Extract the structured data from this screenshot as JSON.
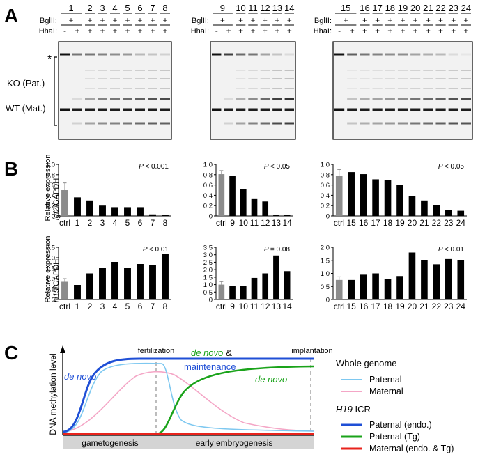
{
  "panels": {
    "A": "A",
    "B": "B",
    "C": "C"
  },
  "gel": {
    "bglII_label": "BglII:",
    "hhaI_label": "HhaI:",
    "asterisk": "*",
    "ko_label": "KO (Pat.)",
    "wt_label": "WT (Mat.)",
    "blocks": [
      {
        "lanes": [
          "1",
          "2",
          "3",
          "4",
          "5",
          "6",
          "7",
          "8"
        ],
        "bglII": [
          "+",
          "+",
          "+",
          "+",
          "+",
          "+",
          "+",
          "+"
        ],
        "hhaI_first": [
          "-",
          "+"
        ],
        "hhaI_rest": [
          "+",
          "+",
          "+",
          "+",
          "+",
          "+",
          "+"
        ],
        "top_band": [
          1.0,
          0.55,
          0.55,
          0.5,
          0.45,
          0.4,
          0.25,
          0.2,
          0.15
        ],
        "ko_band": [
          0.0,
          0.1,
          0.35,
          0.5,
          0.55,
          0.6,
          0.65,
          0.7,
          0.75
        ],
        "wt_band": [
          1.0,
          0.95,
          0.95,
          0.95,
          0.95,
          0.95,
          0.95,
          0.95,
          0.95
        ],
        "low_band": [
          0.0,
          0.15,
          0.35,
          0.45,
          0.5,
          0.55,
          0.6,
          0.65,
          0.65
        ]
      },
      {
        "lanes": [
          "9",
          "10",
          "11",
          "12",
          "13",
          "14"
        ],
        "bglII": [
          "+",
          "+",
          "+",
          "+",
          "+",
          "+"
        ],
        "hhaI_first": [
          "-",
          "+"
        ],
        "hhaI_rest": [
          "+",
          "+",
          "+",
          "+",
          "+"
        ],
        "top_band": [
          1.0,
          0.8,
          0.6,
          0.55,
          0.35,
          0.2,
          0.1
        ],
        "ko_band": [
          0.0,
          0.1,
          0.3,
          0.45,
          0.6,
          0.8,
          0.85
        ],
        "wt_band": [
          1.0,
          0.95,
          0.95,
          0.95,
          0.95,
          0.95,
          0.95
        ],
        "low_band": [
          0.0,
          0.15,
          0.35,
          0.5,
          0.6,
          0.75,
          0.8
        ]
      },
      {
        "lanes": [
          "15",
          "16",
          "17",
          "18",
          "19",
          "20",
          "21",
          "22",
          "23",
          "24"
        ],
        "bglII": [
          "+",
          "+",
          "+",
          "+",
          "+",
          "+",
          "+",
          "+",
          "+",
          "+"
        ],
        "hhaI_first": [
          "-",
          "+"
        ],
        "hhaI_rest": [
          "+",
          "+",
          "+",
          "+",
          "+",
          "+",
          "+",
          "+",
          "+"
        ],
        "top_band": [
          1.0,
          0.65,
          0.55,
          0.5,
          0.45,
          0.45,
          0.35,
          0.3,
          0.25,
          0.1,
          0.05
        ],
        "ko_band": [
          0.0,
          0.2,
          0.3,
          0.35,
          0.4,
          0.45,
          0.55,
          0.6,
          0.65,
          0.7,
          0.75
        ],
        "wt_band": [
          1.0,
          0.95,
          0.95,
          0.95,
          0.95,
          0.95,
          0.95,
          0.95,
          0.95,
          0.95,
          0.95
        ],
        "low_band": [
          0.0,
          0.2,
          0.3,
          0.35,
          0.4,
          0.45,
          0.55,
          0.6,
          0.65,
          0.7,
          0.7
        ]
      }
    ]
  },
  "ylabels": {
    "igf2_pre": "Relative expression",
    "igf2_gene": "Igf2",
    "igf2_post": "/GAPDH",
    "h19_pre": "Relative expression",
    "h19_gene": "H19",
    "h19_post": "/GAPDH"
  },
  "pvalue_prefix": "P",
  "chart_data": [
    {
      "type": "bar",
      "gene": "Igf2",
      "categories": [
        "ctrl",
        "1",
        "2",
        "3",
        "4",
        "5",
        "6",
        "7",
        "8"
      ],
      "values": [
        0.5,
        0.36,
        0.3,
        0.2,
        0.17,
        0.17,
        0.17,
        0.03,
        0.02
      ],
      "error": [
        0.14,
        0,
        0,
        0,
        0,
        0,
        0,
        0,
        0
      ],
      "ylim": [
        0,
        1.0
      ],
      "yticks": [
        "0",
        "0.2",
        "0.4",
        "0.6",
        "0.8",
        "1.0"
      ],
      "pvalue_text": "< 0.001"
    },
    {
      "type": "bar",
      "gene": "Igf2",
      "categories": [
        "ctrl",
        "9",
        "10",
        "11",
        "12",
        "13",
        "14"
      ],
      "values": [
        0.81,
        0.78,
        0.52,
        0.34,
        0.28,
        0.02,
        0.02
      ],
      "error": [
        0.07,
        0,
        0,
        0,
        0,
        0,
        0
      ],
      "ylim": [
        0,
        1.0
      ],
      "yticks": [
        "0",
        "0.2",
        "0.4",
        "0.6",
        "0.8",
        "1.0"
      ],
      "pvalue_text": "< 0.05"
    },
    {
      "type": "bar",
      "gene": "Igf2",
      "categories": [
        "ctrl",
        "15",
        "16",
        "17",
        "18",
        "19",
        "20",
        "21",
        "22",
        "23",
        "24"
      ],
      "values": [
        0.78,
        0.85,
        0.81,
        0.71,
        0.7,
        0.6,
        0.38,
        0.3,
        0.21,
        0.11,
        0.1
      ],
      "error": [
        0.12,
        0,
        0,
        0,
        0,
        0,
        0,
        0,
        0,
        0,
        0
      ],
      "ylim": [
        0,
        1.0
      ],
      "yticks": [
        "0",
        "0.2",
        "0.4",
        "0.6",
        "0.8",
        "1.0"
      ],
      "pvalue_text": "< 0.05"
    },
    {
      "type": "bar",
      "gene": "H19",
      "categories": [
        "ctrl",
        "1",
        "2",
        "3",
        "4",
        "5",
        "6",
        "7",
        "8"
      ],
      "values": [
        0.85,
        0.7,
        1.25,
        1.5,
        1.8,
        1.5,
        1.7,
        1.65,
        2.2
      ],
      "error": [
        0.15,
        0,
        0,
        0,
        0,
        0,
        0,
        0,
        0
      ],
      "ylim": [
        0,
        2.5
      ],
      "yticks": [
        "0",
        "0.5",
        "1.0",
        "1.5",
        "2.0",
        "2.5"
      ],
      "pvalue_text": "< 0.01"
    },
    {
      "type": "bar",
      "gene": "H19",
      "categories": [
        "ctrl",
        "9",
        "10",
        "11",
        "12",
        "13",
        "14"
      ],
      "values": [
        1.0,
        0.9,
        0.9,
        1.45,
        1.75,
        2.95,
        1.9
      ],
      "error": [
        0.2,
        0,
        0,
        0,
        0,
        0,
        0
      ],
      "ylim": [
        0,
        3.5
      ],
      "yticks": [
        "0",
        "0.5",
        "1.0",
        "1.5",
        "2.0",
        "2.5",
        "3.0",
        "3.5"
      ],
      "pvalue_text": "= 0.08"
    },
    {
      "type": "bar",
      "gene": "H19",
      "categories": [
        "ctrl",
        "15",
        "16",
        "17",
        "18",
        "19",
        "20",
        "21",
        "22",
        "23",
        "24"
      ],
      "values": [
        0.75,
        0.75,
        0.95,
        1.0,
        0.8,
        0.9,
        1.8,
        1.5,
        1.35,
        1.55,
        1.5
      ],
      "error": [
        0.12,
        0,
        0,
        0,
        0,
        0,
        0,
        0,
        0,
        0,
        0
      ],
      "ylim": [
        0,
        2.0
      ],
      "yticks": [
        "0",
        "0.5",
        "1.0",
        "1.5",
        "2.0"
      ],
      "pvalue_text": "< 0.01"
    }
  ],
  "diagram": {
    "ylabel": "DNA methylation level",
    "fertilization": "fertilization",
    "implantation": "implantation",
    "de_novo_left": "de novo",
    "de_novo_top": "de novo",
    "amp": "&",
    "maintenance": "maintenance",
    "de_novo_right": "de novo",
    "gametogenesis": "gametogenesis",
    "early_embryogenesis": "early embryogenesis",
    "legend_whole_genome": "Whole genome",
    "legend_paternal": "Paternal",
    "legend_maternal": "Maternal",
    "legend_icr_gene": "H19",
    "legend_icr_suffix": " ICR",
    "legend_pat_endo": "Paternal (endo.)",
    "legend_pat_tg": "Paternal (Tg)",
    "legend_mat": "Maternal (endo. & Tg)",
    "colors": {
      "paternal_whole": "#7ec8f0",
      "maternal_whole": "#f4a6c6",
      "pat_endo": "#1f4fd6",
      "pat_tg": "#1aa31a",
      "maternal_icr": "#e8231c",
      "bar_ctrl": "#8c8c8c",
      "bar": "#000000",
      "band": "#111111"
    }
  }
}
